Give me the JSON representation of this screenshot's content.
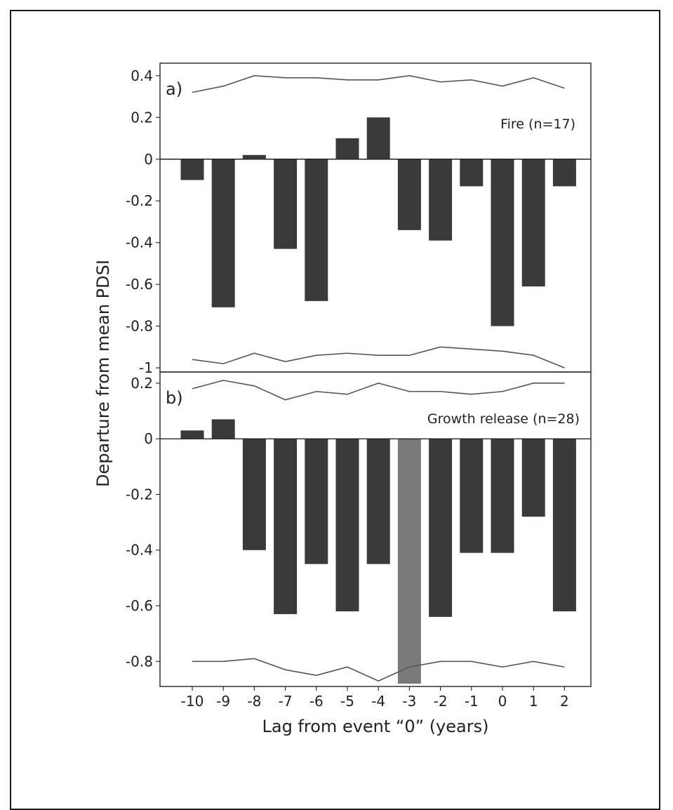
{
  "chart_data": {
    "type": "bar",
    "xlabel": "Lag from event “0” (years)",
    "ylabel": "Departure from mean PDSI",
    "categories": [
      "-10",
      "-9",
      "-8",
      "-7",
      "-6",
      "-5",
      "-4",
      "-3",
      "-2",
      "-1",
      "0",
      "1",
      "2"
    ],
    "bar_color": "#3a3a3a",
    "highlight_color": "#7a7a7a",
    "line_color": "#555555",
    "panels": [
      {
        "label": "a)",
        "series_label": "Fire (n=17)",
        "ylim": [
          -1.02,
          0.46
        ],
        "yticks": [
          0.4,
          0.2,
          0,
          -0.2,
          -0.4,
          -0.6,
          -0.8,
          -1
        ],
        "ytick_labels": [
          "0.4",
          "0.2",
          "0",
          "-0.2",
          "-0.4",
          "-0.6",
          "-0.8",
          "-1"
        ],
        "values": [
          -0.1,
          -0.71,
          0.02,
          -0.43,
          -0.68,
          0.1,
          0.2,
          -0.34,
          -0.39,
          -0.13,
          -0.8,
          -0.61,
          -0.13
        ],
        "highlight_index": null,
        "upper_confidence": [
          0.32,
          0.35,
          0.4,
          0.39,
          0.39,
          0.38,
          0.38,
          0.4,
          0.37,
          0.38,
          0.35,
          0.39,
          0.34
        ],
        "lower_confidence": [
          -0.96,
          -0.98,
          -0.93,
          -0.97,
          -0.94,
          -0.93,
          -0.94,
          -0.94,
          -0.9,
          -0.91,
          -0.92,
          -0.94,
          -1.0
        ]
      },
      {
        "label": "b)",
        "series_label": "Growth release (n=28)",
        "ylim": [
          -0.89,
          0.24
        ],
        "yticks": [
          0.2,
          0,
          -0.2,
          -0.4,
          -0.6,
          -0.8
        ],
        "ytick_labels": [
          "0.2",
          "0",
          "-0.2",
          "-0.4",
          "-0.6",
          "-0.8"
        ],
        "values": [
          0.03,
          0.07,
          -0.4,
          -0.63,
          -0.45,
          -0.62,
          -0.45,
          -0.88,
          -0.64,
          -0.41,
          -0.41,
          -0.28,
          -0.62
        ],
        "highlight_index": 7,
        "upper_confidence": [
          0.18,
          0.21,
          0.19,
          0.14,
          0.17,
          0.16,
          0.2,
          0.17,
          0.17,
          0.16,
          0.17,
          0.2,
          0.2
        ],
        "lower_confidence": [
          -0.8,
          -0.8,
          -0.79,
          -0.83,
          -0.85,
          -0.82,
          -0.87,
          -0.82,
          -0.8,
          -0.8,
          -0.82,
          -0.8,
          -0.82
        ]
      }
    ]
  }
}
